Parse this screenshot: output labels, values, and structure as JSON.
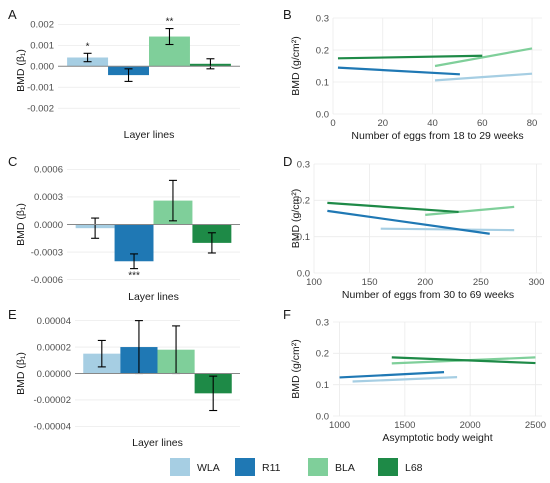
{
  "colors": {
    "WLA": "#a6cee3",
    "R11": "#1f78b4",
    "BLA": "#7fcf9a",
    "L68": "#1e8a47"
  },
  "legend": [
    "WLA",
    "R11",
    "BLA",
    "L68"
  ],
  "chart_data": [
    {
      "panel": "A",
      "type": "bar",
      "xlabel": "Layer lines",
      "ylabel": "BMD (β₁)",
      "ylim": [
        -0.0028,
        0.0024
      ],
      "yticks": [
        -0.002,
        -0.001,
        0.0,
        0.001,
        0.002
      ],
      "yticklabels": [
        "-0.002",
        "-0.001",
        "0.000",
        "0.001",
        "0.002"
      ],
      "categories": [
        "WLA",
        "R11",
        "BLA",
        "L68"
      ],
      "values": [
        0.00042,
        -0.00042,
        0.00142,
        0.00012
      ],
      "errors": [
        0.0002,
        0.0003,
        0.00038,
        0.00024
      ],
      "annotations": [
        "*",
        "",
        "**",
        ""
      ]
    },
    {
      "panel": "B",
      "type": "line",
      "xlabel": "Number of eggs from 18 to 29 weeks",
      "ylabel": "BMD (g/cm²)",
      "xlim": [
        0,
        84
      ],
      "ylim": [
        0,
        0.3
      ],
      "xticks": [
        0,
        20,
        40,
        60,
        80
      ],
      "xticklabels": [
        "0",
        "20",
        "40",
        "60",
        "80"
      ],
      "yticks": [
        0,
        0.1,
        0.2,
        0.3
      ],
      "yticklabels": [
        "0.0",
        "0.1",
        "0.2",
        "0.3"
      ],
      "series": [
        {
          "name": "WLA",
          "x": [
            41,
            80
          ],
          "y": [
            0.105,
            0.126
          ]
        },
        {
          "name": "R11",
          "x": [
            2,
            51
          ],
          "y": [
            0.145,
            0.124
          ]
        },
        {
          "name": "BLA",
          "x": [
            41,
            80
          ],
          "y": [
            0.15,
            0.205
          ]
        },
        {
          "name": "L68",
          "x": [
            2,
            60
          ],
          "y": [
            0.174,
            0.182
          ]
        }
      ]
    },
    {
      "panel": "C",
      "type": "bar",
      "xlabel": "Layer lines",
      "ylabel": "BMD (β₁)",
      "ylim": [
        -0.00068,
        0.00068
      ],
      "yticks": [
        -0.0006,
        -0.0003,
        0.0,
        0.0003,
        0.0006
      ],
      "yticklabels": [
        "-0.0006",
        "-0.0003",
        "0.0000",
        "0.0003",
        "0.0006"
      ],
      "categories": [
        "WLA",
        "R11",
        "BLA",
        "L68"
      ],
      "values": [
        -4e-05,
        -0.0004,
        0.00026,
        -0.0002
      ],
      "errors": [
        0.00011,
        8e-05,
        0.00022,
        0.00011
      ],
      "annotations": [
        "",
        "***",
        "",
        ""
      ]
    },
    {
      "panel": "D",
      "type": "line",
      "xlabel": "Number of eggs from 30 to 69 weeks",
      "ylabel": "BMD (g/cm²)",
      "xlim": [
        100,
        305
      ],
      "ylim": [
        0,
        0.3
      ],
      "xticks": [
        100,
        150,
        200,
        250,
        300
      ],
      "xticklabels": [
        "100",
        "150",
        "200",
        "250",
        "300"
      ],
      "yticks": [
        0,
        0.1,
        0.2,
        0.3
      ],
      "yticklabels": [
        "0.0",
        "0.1",
        "0.2",
        "0.3"
      ],
      "series": [
        {
          "name": "WLA",
          "x": [
            160,
            280
          ],
          "y": [
            0.122,
            0.118
          ]
        },
        {
          "name": "R11",
          "x": [
            112,
            258
          ],
          "y": [
            0.171,
            0.108
          ]
        },
        {
          "name": "BLA",
          "x": [
            200,
            280
          ],
          "y": [
            0.16,
            0.182
          ]
        },
        {
          "name": "L68",
          "x": [
            112,
            230
          ],
          "y": [
            0.193,
            0.168
          ]
        }
      ]
    },
    {
      "panel": "E",
      "type": "bar",
      "xlabel": "Layer lines",
      "ylabel": "BMD (β₁)",
      "ylim": [
        -4.5e-05,
        4.5e-05
      ],
      "yticks": [
        -4e-05,
        -2e-05,
        0.0,
        2e-05,
        4e-05
      ],
      "yticklabels": [
        "-0.00004",
        "-0.00002",
        "0.00000",
        "0.00002",
        "0.00004"
      ],
      "categories": [
        "WLA",
        "R11",
        "BLA",
        "L68"
      ],
      "values": [
        1.5e-05,
        2e-05,
        1.8e-05,
        -1.5e-05
      ],
      "errors": [
        1e-05,
        2e-05,
        1.8e-05,
        1.3e-05
      ],
      "annotations": [
        "",
        "",
        "",
        ""
      ]
    },
    {
      "panel": "F",
      "type": "line",
      "xlabel": "Asymptotic body weight",
      "ylabel": "BMD (g/cm²)",
      "xlim": [
        950,
        2550
      ],
      "ylim": [
        0,
        0.3
      ],
      "xticks": [
        1000,
        1500,
        2000,
        2500
      ],
      "xticklabels": [
        "1000",
        "1500",
        "2000",
        "2500"
      ],
      "yticks": [
        0,
        0.1,
        0.2,
        0.3
      ],
      "yticklabels": [
        "0.0",
        "0.1",
        "0.2",
        "0.3"
      ],
      "series": [
        {
          "name": "WLA",
          "x": [
            1100,
            1900
          ],
          "y": [
            0.11,
            0.124
          ]
        },
        {
          "name": "R11",
          "x": [
            1000,
            1800
          ],
          "y": [
            0.123,
            0.14
          ]
        },
        {
          "name": "BLA",
          "x": [
            1400,
            2500
          ],
          "y": [
            0.168,
            0.187
          ]
        },
        {
          "name": "L68",
          "x": [
            1400,
            2500
          ],
          "y": [
            0.187,
            0.169
          ]
        }
      ]
    }
  ]
}
